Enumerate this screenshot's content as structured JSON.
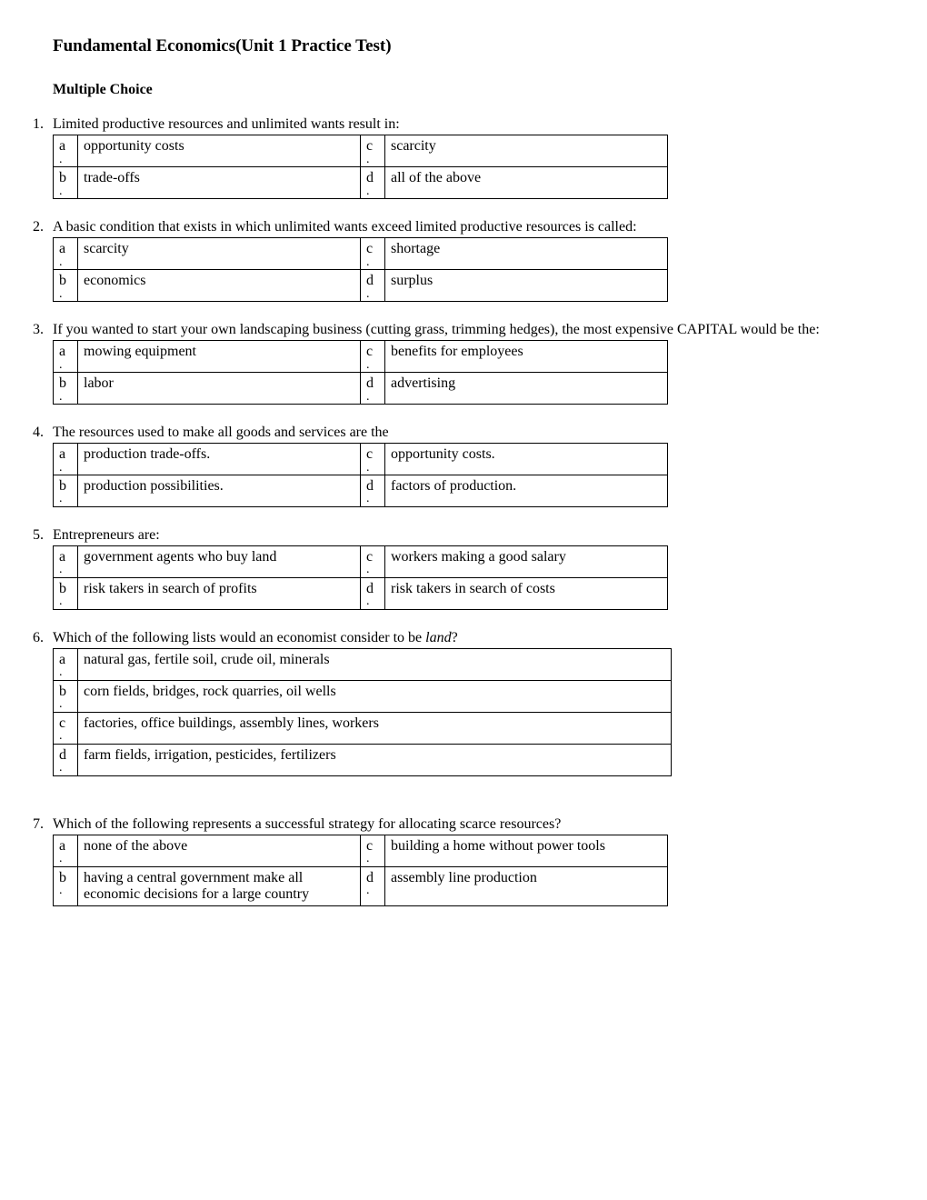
{
  "title": "Fundamental Economics(Unit 1 Practice Test)",
  "subtitle": "Multiple Choice",
  "questions": [
    {
      "num": "1.",
      "text": "Limited productive resources and unlimited wants result in:",
      "layout": "2col",
      "options": {
        "a": "opportunity costs",
        "b": "trade-offs",
        "c": "scarcity",
        "d": "all of the above"
      }
    },
    {
      "num": "2.",
      "text": "A basic condition that exists in which unlimited wants exceed limited productive resources is called:",
      "layout": "2col",
      "options": {
        "a": "scarcity",
        "b": "economics",
        "c": "shortage",
        "d": "surplus"
      }
    },
    {
      "num": "3.",
      "text": "If you wanted to start your own landscaping business (cutting grass, trimming hedges), the most expensive CAPITAL would be the:",
      "layout": "2col",
      "options": {
        "a": "mowing equipment",
        "b": "labor",
        "c": "benefits for employees",
        "d": "advertising"
      }
    },
    {
      "num": "4.",
      "text": "The resources used to make all goods and services are the",
      "layout": "2col",
      "options": {
        "a": "production trade-offs.",
        "b": "production possibilities.",
        "c": "opportunity costs.",
        "d": "factors of production."
      }
    },
    {
      "num": "5.",
      "text": "Entrepreneurs are:",
      "layout": "2col",
      "options": {
        "a": "government agents who buy land",
        "b": "risk takers in search of profits",
        "c": "workers making a good salary",
        "d": "risk takers in search of costs"
      }
    },
    {
      "num": "6.",
      "text_html": "Which of the following lists would an economist consider to be <span class=\"italic\">land</span>?",
      "layout": "1col",
      "options": {
        "a": "natural gas, fertile soil, crude oil, minerals",
        "b": "corn fields, bridges, rock quarries, oil wells",
        "c": "factories, office buildings, assembly lines, workers",
        "d": "farm fields, irrigation, pesticides, fertilizers"
      },
      "extra_space": true
    },
    {
      "num": "7.",
      "text": "Which of the following represents a successful strategy for allocating scarce resources?",
      "layout": "2col",
      "options": {
        "a": "none of the above",
        "b": "having a central government make all economic decisions for a large country",
        "c": "building a home without power tools",
        "d": "assembly line production"
      }
    }
  ],
  "letters": {
    "a": "a",
    "b": "b",
    "c": "c",
    "d": "d"
  }
}
